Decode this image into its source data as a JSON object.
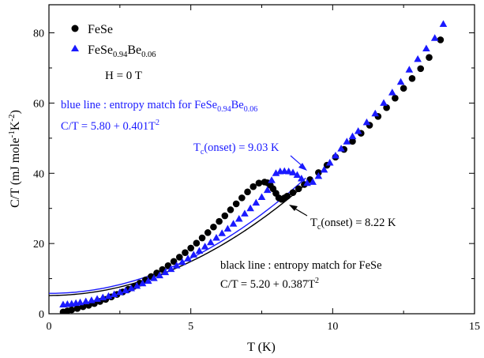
{
  "chart_data": {
    "type": "scatter",
    "xlabel": "T (K)",
    "ylabel": "C/T (mJ mole-1K-2)",
    "ylabel_parts": {
      "main": "C/T (mJ mole",
      "sup1": "-1",
      "mid": "K",
      "sup2": "-2",
      "end": ")"
    },
    "xlim": [
      0,
      15
    ],
    "ylim": [
      0,
      88
    ],
    "x_ticks": [
      0,
      5,
      10,
      15
    ],
    "y_ticks": [
      0,
      20,
      40,
      60,
      80
    ],
    "grid": false,
    "legend_placement": "top-left",
    "legend": [
      {
        "label": "FeSe",
        "marker": "circle",
        "color": "#000000"
      },
      {
        "label_main": "FeSe",
        "sub1": "0.94",
        "label_mid": "Be",
        "sub2": "0.06",
        "marker": "triangle",
        "color": "#1a1aff"
      }
    ],
    "series": [
      {
        "name": "FeSe",
        "marker": "circle",
        "color": "#000000",
        "x": [
          0.5,
          0.65,
          0.8,
          1.0,
          1.2,
          1.4,
          1.6,
          1.8,
          2.0,
          2.2,
          2.4,
          2.6,
          2.8,
          3.0,
          3.2,
          3.4,
          3.6,
          3.8,
          4.0,
          4.2,
          4.4,
          4.6,
          4.8,
          5.0,
          5.2,
          5.4,
          5.6,
          5.8,
          6.0,
          6.2,
          6.4,
          6.6,
          6.8,
          7.0,
          7.2,
          7.4,
          7.6,
          7.7,
          7.8,
          7.9,
          8.0,
          8.1,
          8.2,
          8.3,
          8.4,
          8.6,
          8.8,
          9.0,
          9.2,
          9.5,
          9.8,
          10.1,
          10.4,
          10.7,
          11.0,
          11.3,
          11.6,
          11.9,
          12.2,
          12.5,
          12.8,
          13.1,
          13.4,
          13.8
        ],
        "y": [
          0.5,
          0.8,
          1.1,
          1.5,
          2.0,
          2.4,
          2.9,
          3.5,
          4.1,
          4.8,
          5.5,
          6.2,
          7.0,
          7.8,
          8.7,
          9.6,
          10.6,
          11.6,
          12.6,
          13.7,
          14.9,
          16.1,
          17.4,
          18.7,
          20.1,
          21.6,
          23.1,
          24.7,
          26.3,
          27.9,
          29.6,
          31.3,
          33.0,
          34.7,
          36.2,
          37.2,
          37.5,
          37.3,
          36.6,
          35.6,
          34.3,
          33.0,
          32.6,
          33.0,
          33.5,
          34.5,
          35.6,
          36.8,
          38.2,
          40.2,
          42.3,
          44.6,
          46.8,
          49.1,
          51.4,
          53.7,
          56.2,
          58.7,
          61.4,
          64.2,
          67.0,
          69.8,
          73.0,
          78.0
        ]
      },
      {
        "name_main": "FeSe",
        "sub1": "0.94",
        "name_mid": "Be",
        "sub2": "0.06",
        "marker": "triangle",
        "color": "#1a1aff",
        "x": [
          0.5,
          0.65,
          0.8,
          0.95,
          1.1,
          1.3,
          1.5,
          1.7,
          1.9,
          2.1,
          2.3,
          2.5,
          2.7,
          2.9,
          3.1,
          3.3,
          3.5,
          3.7,
          3.9,
          4.1,
          4.3,
          4.5,
          4.7,
          4.9,
          5.1,
          5.3,
          5.5,
          5.7,
          5.9,
          6.1,
          6.3,
          6.5,
          6.7,
          6.9,
          7.1,
          7.3,
          7.5,
          7.7,
          7.85,
          8.0,
          8.15,
          8.3,
          8.45,
          8.6,
          8.75,
          8.9,
          9.1,
          9.3,
          9.5,
          9.7,
          9.9,
          10.1,
          10.3,
          10.5,
          10.7,
          10.9,
          11.2,
          11.5,
          11.8,
          12.1,
          12.4,
          12.7,
          13.0,
          13.3,
          13.6,
          13.9
        ],
        "y": [
          2.6,
          2.7,
          2.8,
          3.0,
          3.2,
          3.5,
          3.8,
          4.2,
          4.6,
          5.0,
          5.5,
          6.1,
          6.6,
          7.2,
          7.9,
          8.6,
          9.3,
          10.1,
          10.9,
          11.8,
          12.7,
          13.7,
          14.7,
          15.7,
          16.8,
          17.9,
          19.1,
          20.3,
          21.6,
          22.9,
          24.2,
          25.6,
          27.0,
          28.5,
          30.0,
          31.6,
          33.2,
          35.2,
          38.0,
          40.0,
          40.5,
          40.6,
          40.5,
          40.2,
          39.5,
          38.5,
          37.2,
          37.5,
          39.2,
          41.0,
          43.0,
          45.0,
          47.0,
          49.0,
          50.5,
          52.0,
          54.5,
          57.0,
          60.0,
          63.0,
          66.0,
          69.5,
          72.5,
          75.5,
          78.5,
          82.5
        ]
      }
    ],
    "fit_lines": [
      {
        "color": "#000000",
        "a": 5.2,
        "b": 0.387,
        "x_range": [
          0,
          9.05
        ]
      },
      {
        "color": "#1a1aff",
        "a": 5.8,
        "b": 0.401,
        "x_range": [
          0,
          9.05
        ]
      }
    ],
    "annotations": {
      "field": "H = 0 T",
      "blue_line_main": "blue line : entropy match for FeSe",
      "blue_line_sub1": "0.94",
      "blue_line_mid": "Be",
      "blue_line_sub2": "0.06",
      "blue_eq_main": "C/T = 5.80 + 0.401T",
      "blue_eq_sup": "2",
      "blue_tc_pre": "T",
      "blue_tc_sub": "c",
      "blue_tc_post": "(onset) = 9.03 K",
      "black_tc_pre": "T",
      "black_tc_sub": "c",
      "black_tc_post": "(onset) = 8.22 K",
      "black_line": "black line : entropy match for FeSe",
      "black_eq_main": "C/T = 5.20 + 0.387T",
      "black_eq_sup": "2"
    }
  }
}
